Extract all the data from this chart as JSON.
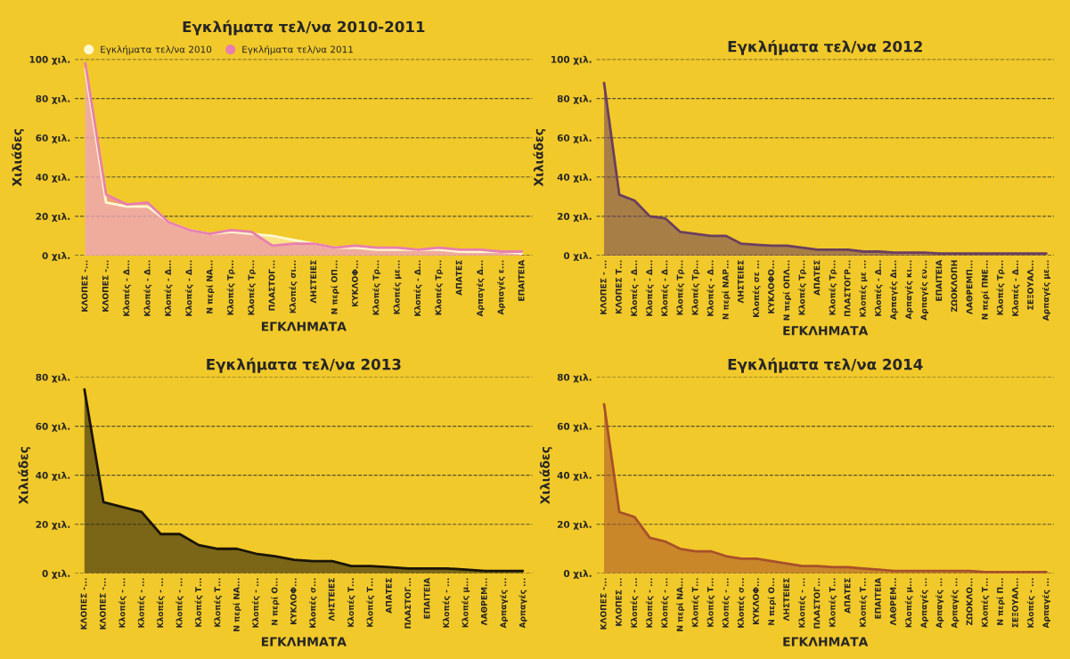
{
  "chart_data": [
    {
      "type": "area",
      "title": "Εγκλήματα τελ/να 2010-2011",
      "xlabel": "ΕΓΚΛΗΜΑΤΑ",
      "ylabel": "Χιλιάδες",
      "categories": [
        "ΚΛΟΠΕΣ -...",
        "ΚΛΟΠΕΣ -...",
        "Κλοπές - Δ...",
        "Κλοπές - Δ...",
        "Κλοπές - Δ...",
        "Κλοπές - Δ...",
        "Ν περί ΝΑ...",
        "Κλοπές Τρ...",
        "Κλοπές Τρ...",
        "ΠΛΑΣΤΟΓ...",
        "Κλοπές σι...",
        "ΛΗΣΤΕΙΕΣ",
        "Ν περί ΟΠ...",
        "ΚΥΚΛΟΦ...",
        "Κλοπές Τρ...",
        "Κλοπές με...",
        "Κλοπές - Δ...",
        "Κλοπές Τρ...",
        "ΑΠΑΤΕΣ",
        "Αρπαγές Δ...",
        "Αρπαγές ε...",
        "ΕΠΑΙΤΕΙΑ"
      ],
      "series": [
        {
          "name": "Εγκλήματα τελ/να 2010",
          "color": "#fff8d0",
          "values": [
            95,
            27,
            25,
            25,
            17,
            13,
            11,
            12,
            11,
            10,
            8,
            6,
            4,
            4,
            3,
            3,
            3,
            3,
            2,
            2,
            2,
            1
          ]
        },
        {
          "name": "Εγκλήματα τελ/να 2011",
          "color": "#e87fb0",
          "values": [
            98,
            31,
            26,
            27,
            17,
            13,
            11,
            13,
            12,
            5,
            6,
            6,
            4,
            5,
            4,
            4,
            3,
            4,
            3,
            3,
            2,
            2
          ]
        }
      ],
      "ylim": [
        0,
        100
      ],
      "yticks": [
        {
          "value": 0,
          "label": "0 χιλ."
        },
        {
          "value": 20,
          "label": "20 χιλ."
        },
        {
          "value": 40,
          "label": "40 χιλ."
        },
        {
          "value": 60,
          "label": "60 χιλ."
        },
        {
          "value": 80,
          "label": "80 χιλ."
        },
        {
          "value": 100,
          "label": "100 χιλ."
        }
      ],
      "grid": "y",
      "legend": "top left"
    },
    {
      "type": "area",
      "title": "Εγκλήματα τελ/να 2012",
      "xlabel": "ΕΓΚΛΗΜΑΤΑ",
      "ylabel": "Χιλιάδες",
      "categories": [
        "ΚΛΟΠΕΣ - ...",
        "ΚΛΟΠΕΣ Τ...",
        "Κλοπές - Δ...",
        "Κλοπές - Δ...",
        "Κλοπές - Δ...",
        "Κλοπές Τρ...",
        "Κλοπές Τρ...",
        "Κλοπές - Δ...",
        "Ν περί ΝΑΡ...",
        "ΛΗΣΤΕΙΕΣ",
        "Κλοπές σε ...",
        "ΚΥΚΛΟΦΟ...",
        "Ν περί ΟΠΛ...",
        "Κλοπές Τρ...",
        "ΑΠΑΤΕΣ",
        "Κλοπές Τρ...",
        "ΠΛΑΣΤΟΓΡ...",
        "Κλοπές με ...",
        "Κλοπές - Δ...",
        "Αρπαγές Δι...",
        "Αρπαγές κι...",
        "Αρπαγές εν...",
        "ΕΠΑΙΤΕΙΑ",
        "ΖΩΟΚΛΟΠΗ",
        "ΛΑΘΡΕΜΠ...",
        "Ν περί ΠΝΕ...",
        "Κλοπές Τρ...",
        "Κλοπές - Δ...",
        "ΣΕΞΟΥΑΛ...",
        "Αρπαγές με..."
      ],
      "series": [
        {
          "color": "#6b3f5e",
          "values": [
            88,
            31,
            28,
            20,
            19,
            12,
            11,
            10,
            10,
            6,
            5.5,
            5,
            5,
            4,
            3,
            3,
            3,
            2,
            2,
            1.5,
            1.5,
            1.5,
            1,
            1,
            1,
            1,
            1,
            1,
            1,
            1
          ]
        }
      ],
      "ylim": [
        0,
        100
      ],
      "yticks": [
        {
          "value": 0,
          "label": "0 χιλ."
        },
        {
          "value": 20,
          "label": "20 χιλ."
        },
        {
          "value": 40,
          "label": "40 χιλ."
        },
        {
          "value": 60,
          "label": "60 χιλ."
        },
        {
          "value": 80,
          "label": "80 χιλ."
        },
        {
          "value": 100,
          "label": "100 χιλ."
        }
      ],
      "grid": "y"
    },
    {
      "type": "area",
      "title": "Εγκλήματα τελ/να 2013",
      "xlabel": "ΕΓΚΛΗΜΑΤΑ",
      "ylabel": "Χιλιάδες",
      "categories": [
        "ΚΛΟΠΕΣ -...",
        "ΚΛΟΠΕΣ -...",
        "Κλοπές - ...",
        "Κλοπές - ...",
        "Κλοπές - ...",
        "Κλοπές - ...",
        "Κλοπές Τ...",
        "Κλοπές Τ...",
        "Ν περί ΝΑ...",
        "Κλοπές - ...",
        "Ν περί Ο...",
        "ΚΥΚΛΟΦ...",
        "Κλοπές σ...",
        "ΛΗΣΤΕΙΕΣ",
        "Κλοπές Τ...",
        "Κλοπές Τ...",
        "ΑΠΑΤΕΣ",
        "ΠΛΑΣΤΟΓ...",
        "ΕΠΑΙΤΕΙΑ",
        "Κλοπές - ...",
        "Κλοπές μ...",
        "ΛΑΘΡΕΜ...",
        "Αρπαγές ...",
        "Αρπαγές ..."
      ],
      "series": [
        {
          "color": "#1a1408",
          "values": [
            75,
            29,
            27,
            25,
            16,
            16,
            11.5,
            10,
            10,
            8,
            7,
            5.5,
            5,
            5,
            3,
            3,
            2.5,
            2,
            2,
            2,
            1.5,
            1,
            1,
            1
          ]
        }
      ],
      "ylim": [
        0,
        80
      ],
      "yticks": [
        {
          "value": 0,
          "label": "0 χιλ."
        },
        {
          "value": 20,
          "label": "20 χιλ."
        },
        {
          "value": 40,
          "label": "40 χιλ."
        },
        {
          "value": 60,
          "label": "60 χιλ."
        },
        {
          "value": 80,
          "label": "80 χιλ."
        }
      ],
      "grid": "y"
    },
    {
      "type": "area",
      "title": "Εγκλήματα τελ/να 2014",
      "xlabel": "ΕΓΚΛΗΜΑΤΑ",
      "ylabel": "Χιλιάδες",
      "categories": [
        "ΚΛΟΠΕΣ -...",
        "ΚΛΟΠΕΣ ...",
        "Κλοπές - ...",
        "Κλοπές - ...",
        "Κλοπές - ...",
        "Ν περί ΝΑ...",
        "Κλοπές Τ...",
        "Κλοπές Τ...",
        "Κλοπές - ...",
        "Κλοπές σ...",
        "ΚΥΚΛΟΦ...",
        "Ν περί Ο...",
        "ΛΗΣΤΕΙΕΣ",
        "Κλοπές - ...",
        "ΠΛΑΣΤΟΓ...",
        "Κλοπές Τ...",
        "ΑΠΑΤΕΣ",
        "Κλοπές Τ...",
        "ΕΠΑΙΤΕΙΑ",
        "ΛΑΘΡΕΜ...",
        "Κλοπές μ...",
        "Αρπαγές ...",
        "Αρπαγές ...",
        "Αρπαγές ...",
        "ΖΩΟΚΛΟ...",
        "Κλοπές Τ...",
        "Ν περί Π...",
        "ΣΕΞΟΥΑΛ...",
        "Κλοπές - ...",
        "Αρπαγές ..."
      ],
      "series": [
        {
          "color": "#a8502a",
          "values": [
            69,
            25,
            23,
            14.5,
            13,
            10,
            9,
            9,
            7,
            6,
            6,
            5,
            4,
            3,
            3,
            2.5,
            2.5,
            2,
            1.5,
            1,
            1,
            1,
            1,
            1,
            1,
            0.5,
            0.5,
            0.5,
            0.5,
            0.5
          ]
        }
      ],
      "ylim": [
        0,
        80
      ],
      "yticks": [
        {
          "value": 0,
          "label": "0 χιλ."
        },
        {
          "value": 20,
          "label": "20 χιλ."
        },
        {
          "value": 40,
          "label": "40 χιλ."
        },
        {
          "value": 60,
          "label": "60 χιλ."
        },
        {
          "value": 80,
          "label": "80 χιλ."
        }
      ],
      "grid": "y"
    }
  ]
}
